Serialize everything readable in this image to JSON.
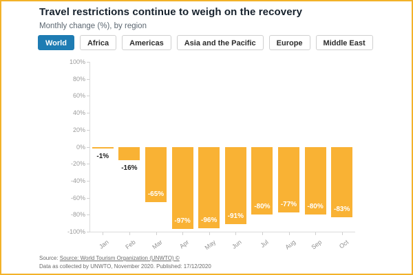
{
  "frame": {
    "border_color": "#F3B229",
    "background": "#ffffff"
  },
  "header": {
    "title": "Travel restrictions continue to weigh on the recovery",
    "subtitle": "Monthly change (%), by region"
  },
  "tabs": [
    {
      "label": "World",
      "active": true
    },
    {
      "label": "Africa",
      "active": false
    },
    {
      "label": "Americas",
      "active": false
    },
    {
      "label": "Asia and the Pacific",
      "active": false
    },
    {
      "label": "Europe",
      "active": false
    },
    {
      "label": "Middle East",
      "active": false
    }
  ],
  "chart_data": {
    "type": "bar",
    "title": "Travel restrictions continue to weigh on the recovery",
    "subtitle": "Monthly change (%), by region",
    "categories": [
      "Jan",
      "Feb",
      "Mar",
      "Apr",
      "May",
      "Jun",
      "Jul",
      "Aug",
      "Sep",
      "Oct"
    ],
    "values": [
      -1,
      -16,
      -65,
      -97,
      -96,
      -91,
      -80,
      -77,
      -80,
      -83
    ],
    "value_labels": [
      "-1%",
      "-16%",
      "-65%",
      "-97%",
      "-96%",
      "-91%",
      "-80%",
      "-77%",
      "-80%",
      "-83%"
    ],
    "xlabel": "",
    "ylabel": "Monthly change (%)",
    "ylim": [
      -100,
      100
    ],
    "ytick_labels": [
      "100%",
      "80%",
      "60%",
      "40%",
      "20%",
      "0%",
      "-20%",
      "-40%",
      "-60%",
      "-80%",
      "-100%"
    ],
    "bar_color": "#F9B234",
    "grid": false,
    "legend_position": "none",
    "label_inside_color": "#ffffff",
    "label_outside_color": "#1d1d1d"
  },
  "footer": {
    "source_prefix": "Source: ",
    "source_link": "Source: World Tourism Organization (UNWTO) ©",
    "data_note": "Data as collected by UNWTO, November 2020. Published: 17/12/2020"
  }
}
